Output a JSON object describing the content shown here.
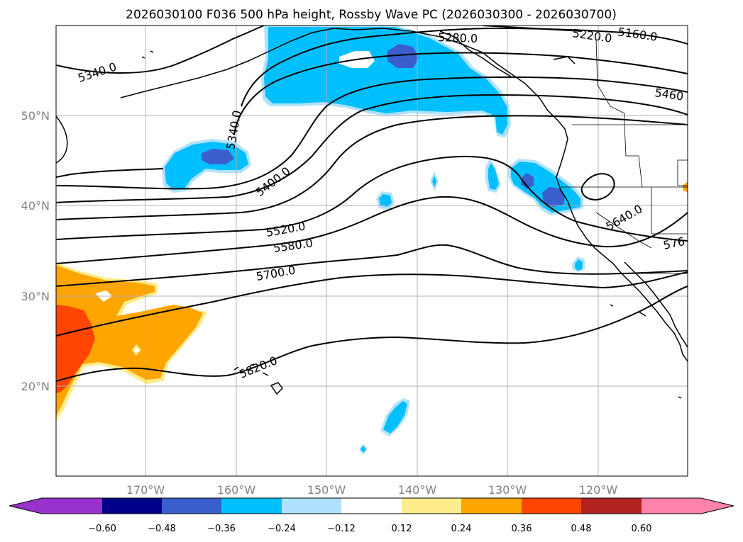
{
  "title": "2026030100 F036 500 hPa height, Rossby Wave PC (2026030300 - 2026030700)",
  "map": {
    "lat_labels": [
      "50°N",
      "40°N",
      "30°N",
      "20°N"
    ],
    "lon_labels": [
      "170°W",
      "160°W",
      "150°W",
      "140°W",
      "130°W",
      "120°W"
    ],
    "contour_labels": [
      "5340.0",
      "5340.0",
      "5160.0",
      "5220.0",
      "5280.0",
      "5460",
      "5400.0",
      "5520.0",
      "5580.0",
      "5640.0",
      "5700.0",
      "576",
      "5820.0"
    ]
  },
  "colorbar": {
    "ticks": [
      "−0.60",
      "−0.48",
      "−0.36",
      "−0.24",
      "−0.12",
      "0.12",
      "0.24",
      "0.36",
      "0.48",
      "0.60"
    ],
    "colors": [
      "#9932cc",
      "#00008b",
      "#3a5fcd",
      "#00bfff",
      "#b0e2ff",
      "#ffffff",
      "#ffec8b",
      "#ffa500",
      "#ff4500",
      "#b22222",
      "#ff82ab"
    ]
  }
}
